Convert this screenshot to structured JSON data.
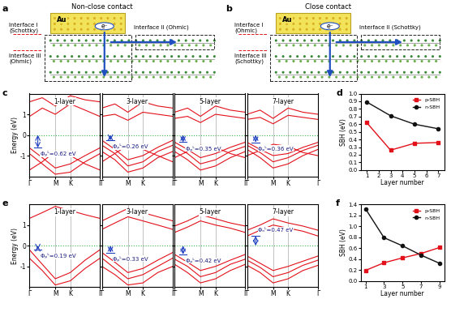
{
  "diagrams": [
    {
      "panel": "a",
      "title": "Non-close contact",
      "metal": "Au",
      "electron": "e⁻",
      "interface_1": "Interface I\n(Schottky)",
      "interface_2": "Interface II (Ohmic)",
      "interface_3": "Interface III\n(Ohmic)"
    },
    {
      "panel": "b",
      "title": "Close contact",
      "metal": "Au",
      "electron": "e⁻",
      "interface_1": "Interface I\n(Ohmic)",
      "interface_2": "Interface II (Schottky)",
      "interface_3": "Interface III\n(Schottky)"
    }
  ],
  "band_structures": [
    {
      "panel": "c",
      "ylabel": "Energy (eV)",
      "k": [
        0,
        0.5,
        1.0,
        1.58,
        2.15,
        2.73
      ],
      "xticks": [
        {
          "value": 0,
          "label": "Γ"
        },
        {
          "value": 1.0,
          "label": "M"
        },
        {
          "value": 1.58,
          "label": "K"
        },
        {
          "value": 2.73,
          "label": "Γ"
        }
      ],
      "xlim": [
        0,
        2.73
      ],
      "ylim": [
        -2,
        2
      ],
      "yticks": [
        -1,
        0,
        1
      ],
      "color": "#e3101a",
      "fermi_color": "#3cb44b",
      "fermi_level": 0,
      "panels": [
        {
          "title": "1-layer",
          "annotation": "Φₚᴸ=0.62 eV",
          "sbh": 0.62,
          "sbh_side": "p",
          "bands": [
            [
              -0.62,
              -1.1,
              -1.6,
              -1.4,
              -1.0,
              -0.62
            ],
            [
              -0.9,
              -1.4,
              -1.9,
              -1.8,
              -1.3,
              -0.9
            ],
            [
              -1.7,
              -1.3,
              -0.8,
              -1.0,
              -1.4,
              -1.7
            ],
            [
              0.89,
              1.3,
              1.0,
              1.5,
              1.2,
              0.89
            ],
            [
              1.6,
              1.8,
              1.4,
              1.9,
              1.7,
              1.6
            ]
          ]
        },
        {
          "title": "3-layer",
          "annotation": "Φₚᴸ=0.26 eV",
          "sbh": 0.26,
          "sbh_side": "p",
          "bands": [
            [
              -0.26,
              -0.7,
              -1.2,
              -1.0,
              -0.6,
              -0.26
            ],
            [
              -0.5,
              -0.9,
              -1.5,
              -1.3,
              -0.8,
              -0.5
            ],
            [
              -0.8,
              -1.2,
              -1.8,
              -1.6,
              -1.1,
              -0.8
            ],
            [
              -1.3,
              -0.9,
              -0.5,
              -0.7,
              -1.0,
              -1.3
            ],
            [
              0.9,
              1.0,
              0.71,
              1.1,
              1.0,
              0.9
            ],
            [
              1.3,
              1.5,
              1.1,
              1.6,
              1.4,
              1.3
            ]
          ]
        },
        {
          "title": "5-layer",
          "annotation": "Φₚᴸ=0.35 eV",
          "sbh": 0.35,
          "sbh_side": "p",
          "bands": [
            [
              -0.35,
              -0.7,
              -1.1,
              -0.9,
              -0.6,
              -0.35
            ],
            [
              -0.55,
              -0.9,
              -1.4,
              -1.2,
              -0.8,
              -0.55
            ],
            [
              -0.8,
              -1.2,
              -1.7,
              -1.5,
              -1.1,
              -0.8
            ],
            [
              -1.1,
              -0.8,
              -0.5,
              -0.6,
              -0.9,
              -1.1
            ],
            [
              0.8,
              0.9,
              0.6,
              1.0,
              0.9,
              0.8
            ],
            [
              1.1,
              1.3,
              0.9,
              1.4,
              1.2,
              1.1
            ]
          ]
        },
        {
          "title": "7-layer",
          "annotation": "Φₚᴸ=0.36 eV",
          "sbh": 0.36,
          "sbh_side": "p",
          "bands": [
            [
              -0.36,
              -0.7,
              -1.0,
              -0.9,
              -0.6,
              -0.36
            ],
            [
              -0.5,
              -0.85,
              -1.3,
              -1.1,
              -0.75,
              -0.5
            ],
            [
              -0.7,
              -1.1,
              -1.6,
              -1.4,
              -1.0,
              -0.7
            ],
            [
              -1.0,
              -0.75,
              -0.45,
              -0.55,
              -0.85,
              -1.0
            ],
            [
              0.75,
              0.85,
              0.54,
              0.95,
              0.85,
              0.75
            ],
            [
              1.0,
              1.2,
              0.8,
              1.3,
              1.1,
              1.0
            ]
          ]
        }
      ]
    },
    {
      "panel": "e",
      "ylabel": "Energy (eV)",
      "k": [
        0,
        0.5,
        1.0,
        1.58,
        2.15,
        2.73
      ],
      "xticks": [
        {
          "value": 0,
          "label": "Γ"
        },
        {
          "value": 1.0,
          "label": "M"
        },
        {
          "value": 1.58,
          "label": "K"
        },
        {
          "value": 2.73,
          "label": "Γ"
        }
      ],
      "xlim": [
        0,
        2.73
      ],
      "ylim": [
        -2,
        2
      ],
      "yticks": [
        -1,
        0,
        1
      ],
      "color": "#e3101a",
      "fermi_color": "#3cb44b",
      "fermi_level": 0,
      "panels": [
        {
          "title": "1-layer",
          "annotation": "Φₚᴸ=0.19 eV",
          "sbh": 0.19,
          "sbh_side": "p",
          "bands": [
            [
              -0.19,
              -0.9,
              -1.6,
              -1.3,
              -0.7,
              -0.19
            ],
            [
              -0.6,
              -1.2,
              -1.9,
              -1.7,
              -1.1,
              -0.6
            ],
            [
              1.32,
              1.6,
              1.9,
              1.7,
              1.5,
              1.32
            ]
          ]
        },
        {
          "title": "3-layer",
          "annotation": "Φₚᴸ=0.33 eV",
          "sbh": 0.33,
          "sbh_side": "p",
          "bands": [
            [
              -0.33,
              -0.8,
              -1.3,
              -1.1,
              -0.7,
              -0.33
            ],
            [
              -0.6,
              -1.1,
              -1.6,
              -1.4,
              -1.0,
              -0.6
            ],
            [
              -1.0,
              -1.4,
              -1.9,
              -1.8,
              -1.3,
              -1.0
            ],
            [
              0.79,
              1.1,
              1.4,
              1.2,
              1.0,
              0.79
            ],
            [
              1.2,
              1.5,
              1.8,
              1.6,
              1.4,
              1.2
            ]
          ]
        },
        {
          "title": "5-layer",
          "annotation": "Φₚᴸ=0.42 eV",
          "sbh": 0.42,
          "sbh_side": "p",
          "bands": [
            [
              -0.42,
              -0.8,
              -1.2,
              -1.0,
              -0.7,
              -0.42
            ],
            [
              -0.65,
              -1.0,
              -1.5,
              -1.3,
              -0.9,
              -0.65
            ],
            [
              -0.9,
              -1.3,
              -1.8,
              -1.6,
              -1.2,
              -0.9
            ],
            [
              0.64,
              0.9,
              1.2,
              1.0,
              0.85,
              0.64
            ],
            [
              0.95,
              1.2,
              1.5,
              1.3,
              1.1,
              0.95
            ]
          ]
        },
        {
          "title": "7-layer",
          "annotation": "Φₙᴸ=0.47 eV",
          "sbh": 0.47,
          "sbh_side": "n",
          "bands": [
            [
              -0.5,
              -0.85,
              -1.2,
              -1.0,
              -0.75,
              -0.5
            ],
            [
              -0.7,
              -1.05,
              -1.5,
              -1.3,
              -0.95,
              -0.7
            ],
            [
              -0.95,
              -1.3,
              -1.8,
              -1.6,
              -1.2,
              -0.95
            ],
            [
              0.47,
              0.75,
              1.0,
              0.85,
              0.7,
              0.47
            ],
            [
              0.75,
              1.0,
              1.3,
              1.1,
              0.95,
              0.75
            ]
          ]
        }
      ]
    }
  ],
  "chart_data": [
    {
      "panel": "d",
      "type": "line",
      "xlabel": "Layer number",
      "ylabel": "SBH (eV)",
      "x": [
        1,
        3,
        5,
        7
      ],
      "xlim": [
        0.5,
        7.5
      ],
      "xticks": [
        1,
        2,
        3,
        4,
        5,
        6,
        7
      ],
      "ylim": [
        0,
        1.0
      ],
      "yticks": [
        {
          "value": 0,
          "label": "0.0"
        },
        {
          "value": 0.1,
          "label": "0.1"
        },
        {
          "value": 0.2,
          "label": "0.2"
        },
        {
          "value": 0.3,
          "label": "0.3"
        },
        {
          "value": 0.4,
          "label": "0.4"
        },
        {
          "value": 0.5,
          "label": "0.5"
        },
        {
          "value": 0.6,
          "label": "0.6"
        },
        {
          "value": 0.7,
          "label": "0.7"
        },
        {
          "value": 0.8,
          "label": "0.8"
        },
        {
          "value": 0.9,
          "label": "0.9"
        },
        {
          "value": 1.0,
          "label": "1.0"
        }
      ],
      "legend": "upper right",
      "series": [
        {
          "name": "p-SBH",
          "color": "#e3101a",
          "marker": "square",
          "values": [
            0.62,
            0.26,
            0.35,
            0.36
          ]
        },
        {
          "name": "n-SBH",
          "color": "#111111",
          "marker": "circle",
          "values": [
            0.89,
            0.71,
            0.6,
            0.54
          ]
        }
      ]
    },
    {
      "panel": "f",
      "type": "line",
      "xlabel": "Layer number",
      "ylabel": "SBH (eV)",
      "x": [
        1,
        3,
        5,
        7,
        9
      ],
      "xlim": [
        0.5,
        9.5
      ],
      "xticks": [
        1,
        3,
        5,
        7,
        9
      ],
      "ylim": [
        0,
        1.4
      ],
      "yticks": [
        {
          "value": 0,
          "label": "0.0"
        },
        {
          "value": 0.2,
          "label": "0.2"
        },
        {
          "value": 0.4,
          "label": "0.4"
        },
        {
          "value": 0.6,
          "label": "0.6"
        },
        {
          "value": 0.8,
          "label": "0.8"
        },
        {
          "value": 1.0,
          "label": "1.0"
        },
        {
          "value": 1.2,
          "label": "1.2"
        },
        {
          "value": 1.4,
          "label": "1.4"
        }
      ],
      "legend": "upper right",
      "series": [
        {
          "name": "p-SBH",
          "color": "#e3101a",
          "marker": "square",
          "values": [
            0.19,
            0.33,
            0.42,
            0.5,
            0.61
          ]
        },
        {
          "name": "n-SBH",
          "color": "#111111",
          "marker": "circle",
          "values": [
            1.32,
            0.79,
            0.64,
            0.47,
            0.32
          ]
        }
      ]
    }
  ]
}
